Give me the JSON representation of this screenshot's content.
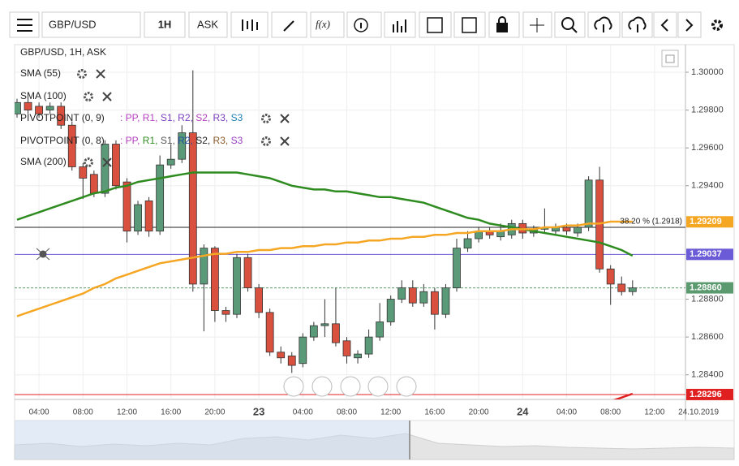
{
  "toolbar": {
    "symbol": "GBP/USD",
    "timeframe": "1H",
    "price_type": "ASK",
    "function_label": "f(x)"
  },
  "chart_data": {
    "type": "candlestick",
    "title": "GBP/USD, 1H, ASK",
    "categories": [
      null,
      null,
      "04:00",
      null,
      null,
      null,
      "08:00",
      null,
      null,
      null,
      "12:00",
      null,
      null,
      null,
      "16:00",
      null,
      null,
      null,
      "20:00",
      null,
      null,
      null,
      "23",
      null,
      null,
      null,
      "04:00",
      null,
      null,
      null,
      "08:00",
      null,
      null,
      null,
      "12:00",
      null,
      null,
      null,
      "16:00",
      null,
      null,
      null,
      "20:00",
      null,
      null,
      null,
      "24",
      null,
      null,
      null,
      "04:00",
      null,
      null,
      null,
      "08:00",
      null,
      null,
      null,
      "12:00",
      null,
      null,
      null,
      "24.10.2019"
    ],
    "open": [
      1.2978,
      1.2984,
      1.2982,
      1.298,
      1.2982,
      1.2972,
      1.295,
      1.2946,
      1.2936,
      1.2962,
      1.2942,
      1.2916,
      1.2932,
      1.2916,
      1.2951,
      1.2954,
      1.2968,
      1.2888,
      1.2907,
      1.2874,
      1.2872,
      1.2902,
      1.2886,
      1.2873,
      1.2852,
      1.285,
      1.2846,
      1.286,
      1.2866,
      1.2867,
      1.2858,
      1.2849,
      1.2851,
      1.286,
      1.2868,
      1.288,
      1.2886,
      1.2878,
      1.2884,
      1.2872,
      1.2886,
      1.2907,
      1.2912,
      1.2916,
      1.2913,
      1.2914,
      1.292,
      1.2915,
      1.2917,
      1.2916,
      1.2918,
      1.2915,
      1.2918,
      1.2943,
      1.2896,
      1.2888,
      1.2884,
      null,
      null,
      null,
      null,
      null,
      null
    ],
    "high": [
      1.2986,
      1.2986,
      1.2984,
      1.2984,
      1.2984,
      1.2974,
      1.2952,
      1.2948,
      1.2964,
      1.2964,
      1.2944,
      1.2932,
      1.2934,
      1.2956,
      1.2962,
      1.2972,
      1.3001,
      1.2909,
      1.2908,
      1.2876,
      1.2904,
      1.2904,
      1.2888,
      1.2875,
      1.2855,
      1.2852,
      1.2862,
      1.2868,
      1.288,
      1.2886,
      1.286,
      1.2853,
      1.2864,
      1.2878,
      1.2882,
      1.289,
      1.289,
      1.2888,
      1.2886,
      1.2888,
      1.2912,
      1.2916,
      1.2918,
      1.2918,
      1.292,
      1.2922,
      1.2922,
      1.2919,
      1.2928,
      1.292,
      1.292,
      1.292,
      1.2945,
      1.295,
      1.2898,
      1.2892,
      1.289,
      null,
      null,
      null,
      null,
      null,
      null
    ],
    "low": [
      1.2976,
      1.2978,
      1.2976,
      1.2978,
      1.297,
      1.2948,
      1.2933,
      1.2934,
      1.2934,
      1.2938,
      1.291,
      1.2914,
      1.2913,
      1.2914,
      1.2949,
      1.2952,
      1.2884,
      1.2863,
      1.2868,
      1.2868,
      1.287,
      1.2884,
      1.287,
      1.285,
      1.2846,
      1.2841,
      1.2844,
      1.2858,
      1.286,
      1.2855,
      1.2846,
      1.2846,
      1.2849,
      1.2858,
      1.2866,
      1.2878,
      1.2876,
      1.2876,
      1.2864,
      1.287,
      1.2884,
      1.2905,
      1.291,
      1.2912,
      1.2911,
      1.2912,
      1.2912,
      1.2913,
      1.2915,
      1.2914,
      1.2914,
      1.2913,
      1.2916,
      1.2894,
      1.2877,
      1.2882,
      1.2882,
      null,
      null,
      null,
      null,
      null,
      null
    ],
    "close": [
      1.2984,
      1.298,
      1.2978,
      1.2982,
      1.2972,
      1.295,
      1.2944,
      1.2936,
      1.2962,
      1.294,
      1.2916,
      1.293,
      1.2916,
      1.2951,
      1.2954,
      1.2968,
      1.2888,
      1.2907,
      1.2874,
      1.2872,
      1.2902,
      1.2886,
      1.2873,
      1.2852,
      1.2849,
      1.2845,
      1.286,
      1.2866,
      1.2867,
      1.2857,
      1.285,
      1.2851,
      1.286,
      1.2868,
      1.288,
      1.2886,
      1.2878,
      1.2884,
      1.2872,
      1.2886,
      1.2907,
      1.2912,
      1.2916,
      1.2914,
      1.2916,
      1.292,
      1.2915,
      1.2917,
      1.2918,
      1.2918,
      1.2916,
      1.2918,
      1.2943,
      1.2896,
      1.2888,
      1.2884,
      1.2886,
      null,
      null,
      null,
      null,
      null,
      null
    ],
    "up_color": "#5b9a78",
    "down_color": "#d9503f",
    "series": [
      {
        "name": "SMA (55)",
        "color": "#2e8b1f",
        "values": [
          1.2922,
          1.2924,
          1.2926,
          1.2928,
          1.293,
          1.2932,
          1.2934,
          1.2936,
          1.2937,
          1.2939,
          1.294,
          1.2942,
          1.2943,
          1.2944,
          1.2945,
          1.2946,
          1.2947,
          1.2947,
          1.2947,
          1.2947,
          1.2947,
          1.2946,
          1.2945,
          1.2944,
          1.2942,
          1.294,
          1.2939,
          1.2938,
          1.2938,
          1.2937,
          1.2937,
          1.2936,
          1.2935,
          1.2934,
          1.2934,
          1.2933,
          1.2932,
          1.2931,
          1.2929,
          1.2927,
          1.2925,
          1.2923,
          1.2922,
          1.292,
          1.2919,
          1.2918,
          1.2917,
          1.2916,
          1.2915,
          1.2914,
          1.2913,
          1.2912,
          1.2911,
          1.291,
          1.2908,
          1.2906,
          1.2903,
          null,
          null,
          null,
          null,
          null,
          null
        ]
      },
      {
        "name": "SMA (100)",
        "color": "#f5a623",
        "values": [
          1.2871,
          1.2873,
          1.2875,
          1.2877,
          1.2879,
          1.2881,
          1.2883,
          1.2886,
          1.2888,
          1.2891,
          1.2893,
          1.2895,
          1.2897,
          1.2899,
          1.29,
          1.2901,
          1.2902,
          1.2903,
          1.2904,
          1.2904,
          1.2905,
          1.2905,
          1.2906,
          1.2906,
          1.2907,
          1.2907,
          1.2908,
          1.2908,
          1.2909,
          1.2909,
          1.291,
          1.291,
          1.2911,
          1.2911,
          1.2912,
          1.2912,
          1.2913,
          1.2913,
          1.2914,
          1.2914,
          1.2915,
          1.2915,
          1.2916,
          1.2916,
          1.2916,
          1.2917,
          1.2917,
          1.2917,
          1.2918,
          1.2918,
          1.2919,
          1.2919,
          1.292,
          1.292,
          1.2921,
          1.2921,
          1.2921,
          null,
          null,
          null,
          null,
          null,
          null
        ]
      },
      {
        "name": "SMA (200)",
        "color": "#e02020",
        "values": [
          null,
          null,
          null,
          null,
          null,
          null,
          null,
          null,
          null,
          null,
          null,
          null,
          null,
          null,
          null,
          null,
          null,
          null,
          null,
          null,
          null,
          null,
          null,
          null,
          null,
          null,
          null,
          null,
          null,
          null,
          null,
          null,
          null,
          null,
          null,
          null,
          null,
          null,
          null,
          null,
          null,
          null,
          null,
          null,
          null,
          null,
          null,
          null,
          null,
          null,
          null,
          null,
          null,
          null,
          1.2826,
          1.2828,
          1.283,
          null,
          null,
          null,
          null,
          null,
          null
        ]
      }
    ],
    "pivots": [
      {
        "name": "PIVOTPOINT (0, 9)",
        "levels": [
          {
            "text": ": PP,",
            "color": "#b53fc0"
          },
          {
            "text": " R1,",
            "color": "#b53fc0"
          },
          {
            "text": " S1,",
            "color": "#7a3fc0"
          },
          {
            "text": " R2,",
            "color": "#7a3fc0"
          },
          {
            "text": " S2,",
            "color": "#b53fc0"
          },
          {
            "text": " R3,",
            "color": "#7a3fc0"
          },
          {
            "text": " S3",
            "color": "#1a7fb5"
          }
        ]
      },
      {
        "name": "PIVOTPOINT (0, 8)",
        "levels": [
          {
            "text": ": PP,",
            "color": "#b53fc0"
          },
          {
            "text": " R1,",
            "color": "#2e8b1f"
          },
          {
            "text": " S1,",
            "color": "#555555"
          },
          {
            "text": " R2,",
            "color": "#1f4fa0"
          },
          {
            "text": " S2,",
            "color": "#222222"
          },
          {
            "text": " R3,",
            "color": "#8b5a2b"
          },
          {
            "text": " S3",
            "color": "#9a3fc0"
          }
        ]
      }
    ],
    "fib_level": {
      "value": 1.2918,
      "label": "38.20 % (1.2918)"
    },
    "price_lines": [
      {
        "value": 1.29209,
        "label": "1.29209",
        "color": "#f5a623",
        "line": false,
        "dashed": false
      },
      {
        "value": 1.29037,
        "label": "1.29037",
        "color": "#6b5bd6",
        "line": true,
        "dashed": false
      },
      {
        "value": 1.2886,
        "label": "1.28860",
        "color": "#5a9a6e",
        "line": true,
        "dashed": true
      },
      {
        "value": 1.28296,
        "label": "1.28296",
        "color": "#e02020",
        "line": true,
        "dashed": false
      }
    ],
    "ylim": [
      1.2827,
      1.30146
    ],
    "yticks": [
      {
        "value": 1.3,
        "label": "1.30000"
      },
      {
        "value": 1.298,
        "label": "1.29800"
      },
      {
        "value": 1.296,
        "label": "1.29600"
      },
      {
        "value": 1.294,
        "label": "1.29400"
      },
      {
        "value": 1.288,
        "label": "1.28800"
      },
      {
        "value": 1.286,
        "label": "1.28600"
      },
      {
        "value": 1.284,
        "label": "1.28400"
      }
    ],
    "grid": true
  }
}
